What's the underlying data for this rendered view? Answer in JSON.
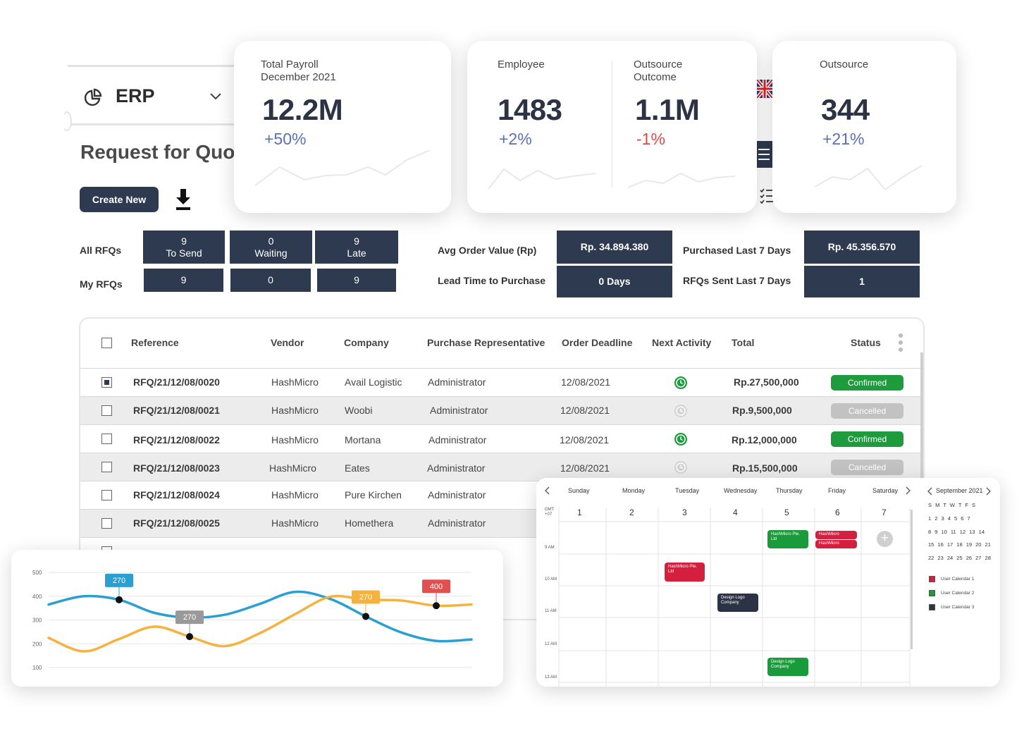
{
  "sidebar": {
    "app_name": "ERP",
    "page_title": "Request for Quot",
    "create_label": "Create New"
  },
  "kpi_cards": [
    {
      "label": "Total Payroll\nDecember 2021",
      "value": "12.2M",
      "delta": "+50%"
    },
    {
      "label": "Employee",
      "value": "1483",
      "delta": "+2%"
    },
    {
      "label": "Outsource\nOutcome",
      "value": "1.1M",
      "delta": "-1%"
    },
    {
      "label": "Outsource",
      "value": "344",
      "delta": "+21%"
    }
  ],
  "rfq_stats": {
    "all_label": "All RFQs",
    "my_label": "My RFQs",
    "all": [
      {
        "count": "9",
        "label": "To Send"
      },
      {
        "count": "0",
        "label": "Waiting"
      },
      {
        "count": "9",
        "label": "Late"
      }
    ],
    "my": [
      "9",
      "0",
      "9"
    ]
  },
  "purchase_stats": {
    "avg_order_label": "Avg Order Value (Rp)",
    "avg_order_value": "Rp. 34.894.380",
    "lead_time_label": "Lead Time to Purchase",
    "lead_time_value": "0 Days",
    "purchased_label": "Purchased Last 7 Days",
    "purchased_value": "Rp. 45.356.570",
    "sent_label": "RFQs Sent Last 7 Days",
    "sent_value": "1"
  },
  "table": {
    "headers": [
      "Reference",
      "Vendor",
      "Company",
      "Purchase Representative",
      "Order Deadline",
      "Next Activity",
      "Total",
      "Status"
    ],
    "rows": [
      {
        "ref": "RFQ/21/12/08/0020",
        "vendor": "HashMicro",
        "company": "Avail Logistic",
        "rep": "Administrator",
        "deadline": "12/08/2021",
        "total": "Rp.27,500,000",
        "status": "Confirmed"
      },
      {
        "ref": "RFQ/21/12/08/0021",
        "vendor": "HashMicro",
        "company": "Woobi",
        "rep": "Administrator",
        "deadline": "12/08/2021",
        "total": "Rp.9,500,000",
        "status": "Cancelled"
      },
      {
        "ref": "RFQ/21/12/08/0022",
        "vendor": "HashMicro",
        "company": "Mortana",
        "rep": "Administrator",
        "deadline": "12/08/2021",
        "total": "Rp.12,000,000",
        "status": "Confirmed"
      },
      {
        "ref": "RFQ/21/12/08/0023",
        "vendor": "HashMicro",
        "company": "Eates",
        "rep": "Administrator",
        "deadline": "12/08/2021",
        "total": "Rp.15,500,000",
        "status": "Cancelled"
      },
      {
        "ref": "RFQ/21/12/08/0024",
        "vendor": "HashMicro",
        "company": "Pure Kirchen",
        "rep": "Administrator"
      },
      {
        "ref": "RFQ/21/12/08/0025",
        "vendor": "HashMicro",
        "company": "Homethera",
        "rep": "Administrator"
      }
    ]
  },
  "calendar": {
    "days": [
      "Sunday",
      "Monday",
      "Tuesday",
      "Wednesday",
      "Thursday",
      "Friday",
      "Saturday"
    ],
    "dates": [
      "1",
      "2",
      "3",
      "4",
      "5",
      "6",
      "7"
    ],
    "tz": "GMT +07",
    "times": [
      "9 AM",
      "10 AM",
      "11 AM",
      "12 AM",
      "13 AM"
    ],
    "events": [
      {
        "title": "HashMicro Pte. Ltd",
        "color": "green"
      },
      {
        "title": "HashMicro",
        "color": "red"
      },
      {
        "title": "HashMicro",
        "color": "red"
      },
      {
        "title": "HashMicro Pte. Ltd",
        "color": "red"
      },
      {
        "title": "Design Logo Company",
        "color": "dark"
      },
      {
        "title": "Design Logo Company",
        "color": "green"
      }
    ],
    "mini": {
      "title": "September 2021",
      "weekdays": "S M T W T F S",
      "weeks": [
        "1 2 3 4 5 6 7",
        "8 9 10 11 12 13 14",
        "15 16 17 18 19 20 21",
        "22 23 24 25 26 27 28"
      ]
    },
    "legend": [
      "User Calendar 1",
      "User Calendar 2",
      "User Calendar 3"
    ],
    "legend_colors": [
      "#d4203e",
      "#199b3b",
      "#2b3344"
    ]
  },
  "chart_data": {
    "type": "line",
    "y_ticks": [
      "500",
      "400",
      "300",
      "200",
      "100"
    ],
    "ylim": [
      100,
      500
    ],
    "x": [
      0,
      1,
      2,
      3,
      4,
      5,
      6,
      7,
      8,
      9,
      10,
      11,
      12
    ],
    "series": [
      {
        "color": "#2a9fd0",
        "values": [
          365,
          400,
          385,
          330,
          310,
          322,
          368,
          418,
          388,
          315,
          248,
          212,
          218
        ]
      },
      {
        "color": "#f5b23f",
        "values": [
          225,
          168,
          220,
          272,
          230,
          190,
          245,
          325,
          398,
          385,
          382,
          360,
          365
        ]
      }
    ],
    "callouts": [
      {
        "text": "270",
        "color": "#2a9fd0"
      },
      {
        "text": "270",
        "color": "#999999"
      },
      {
        "text": "270",
        "color": "#f5b23f"
      },
      {
        "text": "400",
        "color": "#e05050"
      }
    ]
  },
  "colors": {
    "navy": "#2d3a4f",
    "confirmed": "#1e9b3c",
    "cancelled": "#c2c2c2",
    "positive": "#5a6fb8",
    "negative": "#e04848"
  }
}
